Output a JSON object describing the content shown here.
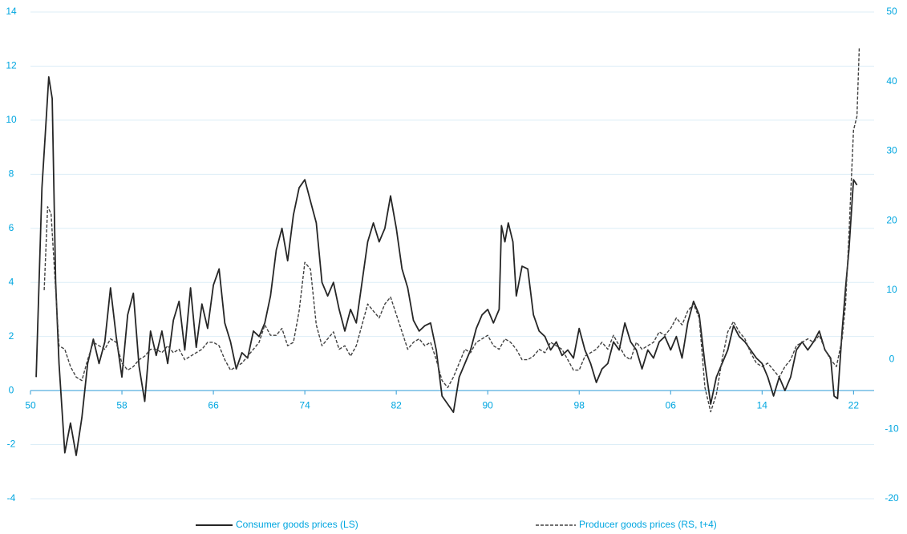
{
  "chart_data": {
    "type": "line",
    "xlim": [
      1950,
      2023.8
    ],
    "xticks": [
      {
        "value": 1950,
        "label": "50"
      },
      {
        "value": 1958,
        "label": "58"
      },
      {
        "value": 1966,
        "label": "66"
      },
      {
        "value": 1974,
        "label": "74"
      },
      {
        "value": 1982,
        "label": "82"
      },
      {
        "value": 1990,
        "label": "90"
      },
      {
        "value": 1998,
        "label": "98"
      },
      {
        "value": 2006,
        "label": "06"
      },
      {
        "value": 2014,
        "label": "14"
      },
      {
        "value": 2022,
        "label": "22"
      }
    ],
    "ylim": [
      -4,
      14
    ],
    "yticks": [
      14,
      12,
      10,
      8,
      6,
      4,
      2,
      0,
      -2,
      -4
    ],
    "y2lim": [
      -20,
      50
    ],
    "y2ticks": [
      50,
      40,
      30,
      20,
      10,
      0,
      -10,
      -20
    ],
    "grid": true,
    "series": [
      {
        "name": "Consumer goods prices (LS)",
        "color": "#262626",
        "dash": false,
        "x": [
          1950.5,
          1951,
          1951.3,
          1951.6,
          1951.9,
          1952.2,
          1952.5,
          1953,
          1953.5,
          1954,
          1954.5,
          1955,
          1955.5,
          1956,
          1956.5,
          1957,
          1957.5,
          1958,
          1958.5,
          1959,
          1959.5,
          1960,
          1960.5,
          1961,
          1961.5,
          1962,
          1962.5,
          1963,
          1963.5,
          1964,
          1964.5,
          1965,
          1965.5,
          1966,
          1966.5,
          1967,
          1967.5,
          1968,
          1968.5,
          1969,
          1969.5,
          1970,
          1970.5,
          1971,
          1971.5,
          1972,
          1972.5,
          1973,
          1973.5,
          1974,
          1974.5,
          1975,
          1975.5,
          1976,
          1976.5,
          1977,
          1977.5,
          1978,
          1978.5,
          1979,
          1979.5,
          1980,
          1980.5,
          1981,
          1981.5,
          1982,
          1982.5,
          1983,
          1983.5,
          1984,
          1984.5,
          1985,
          1985.5,
          1986,
          1986.5,
          1987,
          1987.5,
          1988,
          1988.5,
          1989,
          1989.5,
          1990,
          1990.5,
          1991,
          1991.2,
          1991.5,
          1991.8,
          1992.2,
          1992.5,
          1993,
          1993.5,
          1994,
          1994.5,
          1995,
          1995.5,
          1996,
          1996.5,
          1997,
          1997.5,
          1998,
          1998.5,
          1999,
          1999.5,
          2000,
          2000.5,
          2001,
          2001.5,
          2002,
          2002.5,
          2003,
          2003.5,
          2004,
          2004.5,
          2005,
          2005.5,
          2006,
          2006.5,
          2007,
          2007.5,
          2008,
          2008.5,
          2009,
          2009.5,
          2010,
          2010.5,
          2011,
          2011.5,
          2012,
          2012.5,
          2013,
          2013.5,
          2014,
          2014.5,
          2015,
          2015.5,
          2016,
          2016.5,
          2017,
          2017.5,
          2018,
          2018.5,
          2019,
          2019.5,
          2020,
          2020.3,
          2020.6,
          2021,
          2021.3,
          2021.6,
          2022,
          2022.3
        ],
        "values": [
          0.5,
          7.5,
          9.5,
          11.6,
          10.8,
          4,
          1,
          -2.3,
          -1.2,
          -2.4,
          -1,
          1,
          1.9,
          1,
          1.8,
          3.8,
          2,
          0.5,
          2.8,
          3.6,
          0.9,
          -0.4,
          2.2,
          1.3,
          2.2,
          1,
          2.6,
          3.3,
          1.5,
          3.8,
          1.6,
          3.2,
          2.3,
          3.9,
          4.5,
          2.5,
          1.8,
          0.8,
          1.4,
          1.2,
          2.2,
          2,
          2.5,
          3.5,
          5.2,
          6,
          4.8,
          6.5,
          7.5,
          7.8,
          7,
          6.2,
          4,
          3.5,
          4,
          3,
          2.2,
          3,
          2.5,
          4,
          5.5,
          6.2,
          5.5,
          6,
          7.2,
          6,
          4.5,
          3.8,
          2.6,
          2.2,
          2.4,
          2.5,
          1.5,
          -0.2,
          -0.5,
          -0.8,
          0.5,
          1,
          1.5,
          2.3,
          2.8,
          3,
          2.5,
          3,
          6.1,
          5.5,
          6.2,
          5.5,
          3.5,
          4.6,
          4.5,
          2.8,
          2.2,
          2,
          1.5,
          1.8,
          1.3,
          1.5,
          1.2,
          2.3,
          1.5,
          1,
          0.3,
          0.8,
          1,
          1.8,
          1.5,
          2.5,
          1.8,
          1.5,
          0.8,
          1.5,
          1.2,
          1.8,
          2,
          1.5,
          2,
          1.2,
          2.5,
          3.3,
          2.8,
          1,
          -0.5,
          0.5,
          1,
          1.5,
          2.4,
          2,
          1.8,
          1.5,
          1.2,
          1,
          0.5,
          -0.2,
          0.5,
          0,
          0.5,
          1.5,
          1.8,
          1.5,
          1.8,
          2.2,
          1.5,
          1.2,
          -0.2,
          -0.3,
          2.2,
          3.8,
          5.2,
          7.8,
          7.6
        ]
      },
      {
        "name": "Producer goods prices (RS, t+4)",
        "color": "#404040",
        "dash": true,
        "axis": "y2",
        "x": [
          1951.2,
          1951.5,
          1951.8,
          1952.2,
          1952.5,
          1953,
          1953.5,
          1954,
          1954.5,
          1955,
          1955.5,
          1956,
          1956.5,
          1957,
          1957.5,
          1958,
          1958.5,
          1959,
          1959.5,
          1960,
          1960.5,
          1961,
          1961.5,
          1962,
          1962.5,
          1963,
          1963.5,
          1964,
          1964.5,
          1965,
          1965.5,
          1966,
          1966.5,
          1967,
          1967.5,
          1968,
          1968.5,
          1969,
          1969.5,
          1970,
          1970.5,
          1971,
          1971.5,
          1972,
          1972.5,
          1973,
          1973.5,
          1974,
          1974.5,
          1975,
          1975.5,
          1976,
          1976.5,
          1977,
          1977.5,
          1978,
          1978.5,
          1979,
          1979.5,
          1980,
          1980.5,
          1981,
          1981.5,
          1982,
          1982.5,
          1983,
          1983.5,
          1984,
          1984.5,
          1985,
          1985.5,
          1986,
          1986.5,
          1987,
          1987.5,
          1988,
          1988.5,
          1989,
          1989.5,
          1990,
          1990.5,
          1991,
          1991.5,
          1992,
          1992.5,
          1993,
          1993.5,
          1994,
          1994.5,
          1995,
          1995.5,
          1996,
          1996.5,
          1997,
          1997.5,
          1998,
          1998.5,
          1999,
          1999.5,
          2000,
          2000.5,
          2001,
          2001.5,
          2002,
          2002.5,
          2003,
          2003.5,
          2004,
          2004.5,
          2005,
          2005.5,
          2006,
          2006.5,
          2007,
          2007.5,
          2008,
          2008.5,
          2009,
          2009.5,
          2010,
          2010.5,
          2011,
          2011.5,
          2012,
          2012.5,
          2013,
          2013.5,
          2014,
          2014.5,
          2015,
          2015.5,
          2016,
          2016.5,
          2017,
          2017.5,
          2018,
          2018.5,
          2019,
          2019.5,
          2020,
          2020.5,
          2021,
          2021.3,
          2021.6,
          2022,
          2022.3,
          2022.5
        ],
        "values": [
          10,
          22,
          21,
          10,
          2,
          1.5,
          -1,
          -2.5,
          -3,
          0,
          2.5,
          2,
          1.5,
          3,
          2.5,
          -0.5,
          -1.5,
          -1,
          0,
          0.5,
          1.5,
          1.5,
          1,
          2,
          1,
          1.5,
          0,
          0.5,
          1,
          1.5,
          2.5,
          2.5,
          2,
          0,
          -1.5,
          -1,
          -0.5,
          0.5,
          1.5,
          2.5,
          5,
          3.5,
          3.5,
          4.5,
          2,
          2.5,
          7,
          14,
          13,
          5,
          2,
          3,
          4,
          1.5,
          2,
          0.5,
          2,
          5,
          8,
          7,
          6,
          8,
          9,
          6.5,
          4,
          1.5,
          2.5,
          3,
          2,
          2.5,
          0,
          -3,
          -4,
          -2.5,
          -0.5,
          1.5,
          1,
          2.5,
          3,
          3.5,
          2,
          1.5,
          3,
          2.5,
          1.5,
          0,
          0,
          0.5,
          1.5,
          1,
          2.5,
          2,
          1.5,
          0,
          -1.5,
          -1.5,
          0.5,
          1,
          1.5,
          2.5,
          1.5,
          3.5,
          2,
          0.5,
          0,
          2.5,
          1.5,
          2,
          2.5,
          4,
          3.5,
          4.5,
          6,
          5,
          7,
          8,
          6,
          -4,
          -7.5,
          -5,
          0,
          4,
          5.5,
          4,
          3,
          1,
          -0.5,
          -1,
          -0.5,
          -1.5,
          -2.5,
          -1,
          0,
          2,
          2.5,
          3,
          2.5,
          3.5,
          1.5,
          0,
          -1,
          3,
          8,
          18,
          33,
          35,
          45
        ]
      }
    ]
  }
}
